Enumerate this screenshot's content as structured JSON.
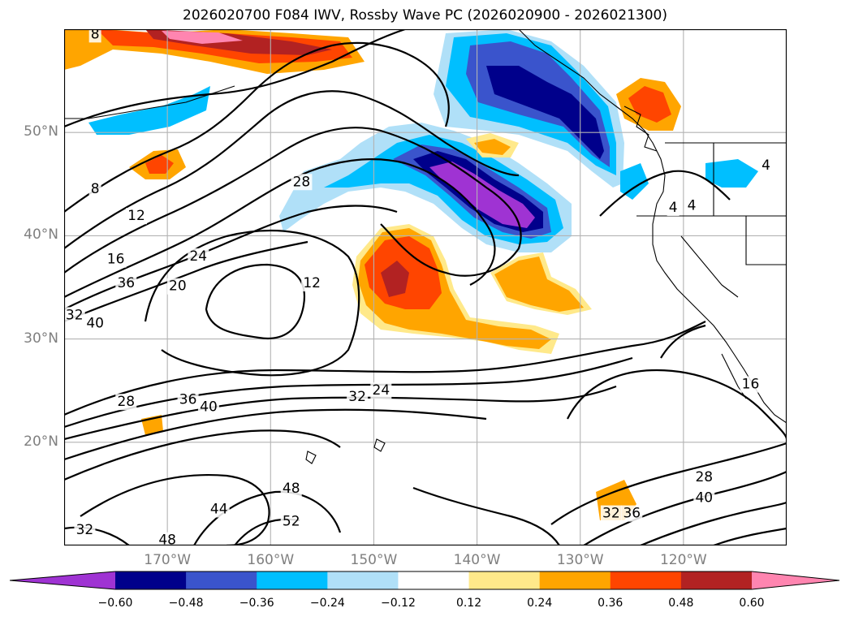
{
  "title": "2026020700 F084 IWV, Rossby Wave PC (2026020900 - 2026021300)",
  "map": {
    "projection": "cylindrical",
    "lon_range": [
      -180,
      -110
    ],
    "lat_range": [
      10,
      60
    ],
    "lat_ticks": [
      {
        "value": 20,
        "label": "20°N"
      },
      {
        "value": 30,
        "label": "30°N"
      },
      {
        "value": 40,
        "label": "40°N"
      },
      {
        "value": 50,
        "label": "50°N"
      }
    ],
    "lon_ticks": [
      {
        "value": -170,
        "label": "170°W"
      },
      {
        "value": -160,
        "label": "160°W"
      },
      {
        "value": -150,
        "label": "150°W"
      },
      {
        "value": -140,
        "label": "140°W"
      },
      {
        "value": -130,
        "label": "130°W"
      },
      {
        "value": -120,
        "label": "120°W"
      }
    ],
    "grid": true,
    "iwv_contour_labels": [
      {
        "text": "8",
        "lon": -177,
        "lat": 59.5
      },
      {
        "text": "8",
        "lon": -177,
        "lat": 44.5
      },
      {
        "text": "12",
        "lon": -173,
        "lat": 41.9
      },
      {
        "text": "16",
        "lon": -175,
        "lat": 37.7
      },
      {
        "text": "36",
        "lon": -174,
        "lat": 35.4
      },
      {
        "text": "32",
        "lon": -179,
        "lat": 32.3
      },
      {
        "text": "40",
        "lon": -177,
        "lat": 31.5
      },
      {
        "text": "20",
        "lon": -169,
        "lat": 35.1
      },
      {
        "text": "24",
        "lon": -167,
        "lat": 38.0
      },
      {
        "text": "28",
        "lon": -157,
        "lat": 45.2
      },
      {
        "text": "12",
        "lon": -156,
        "lat": 35.4
      },
      {
        "text": "24",
        "lon": -149.3,
        "lat": 25.0
      },
      {
        "text": "32",
        "lon": -151.6,
        "lat": 24.4
      },
      {
        "text": "36",
        "lon": -168,
        "lat": 24.1
      },
      {
        "text": "40",
        "lon": -166,
        "lat": 23.4
      },
      {
        "text": "28",
        "lon": -174,
        "lat": 23.9
      },
      {
        "text": "48",
        "lon": -158,
        "lat": 15.5
      },
      {
        "text": "44",
        "lon": -165,
        "lat": 13.5
      },
      {
        "text": "52",
        "lon": -158,
        "lat": 12.3
      },
      {
        "text": "32",
        "lon": -178,
        "lat": 11.5
      },
      {
        "text": "48",
        "lon": -170,
        "lat": 10.5
      },
      {
        "text": "4",
        "lon": -121,
        "lat": 42.7
      },
      {
        "text": "4",
        "lon": -119.2,
        "lat": 42.9
      },
      {
        "text": "4",
        "lon": -112,
        "lat": 46.8
      },
      {
        "text": "16",
        "lon": -113.5,
        "lat": 25.6
      },
      {
        "text": "28",
        "lon": -118,
        "lat": 16.6
      },
      {
        "text": "40",
        "lon": -118,
        "lat": 14.6
      },
      {
        "text": "36",
        "lon": -125,
        "lat": 13.1
      },
      {
        "text": "32",
        "lon": -127,
        "lat": 13.1
      }
    ]
  },
  "colorbar": {
    "levels": [
      -0.72,
      -0.6,
      -0.48,
      -0.36,
      -0.24,
      -0.12,
      0.12,
      0.24,
      0.36,
      0.48,
      0.6,
      0.72
    ],
    "colors": [
      "#9f33d3",
      "#00008b",
      "#3a54cc",
      "#00bfff",
      "#b0e0f8",
      "#ffffff",
      "#ffe98a",
      "#ffa500",
      "#ff4500",
      "#b22222",
      "#ff85b0"
    ],
    "extend": "both",
    "tick_labels": [
      "−0.60",
      "−0.48",
      "−0.36",
      "−0.24",
      "−0.12",
      "0.12",
      "0.24",
      "0.36",
      "0.48",
      "0.60"
    ]
  }
}
